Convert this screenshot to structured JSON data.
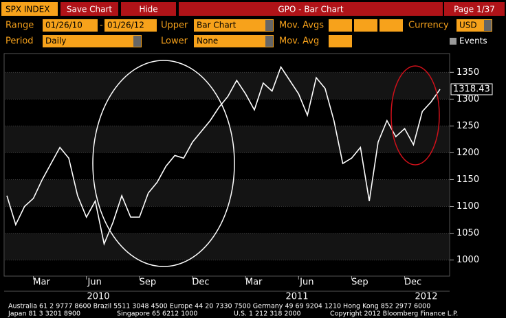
{
  "toolbar": {
    "ticker": "SPX INDEX",
    "buttons": [
      "Save Chart",
      "Hide"
    ],
    "title": "GPO - Bar Chart",
    "page": "Page 1/37",
    "range_label": "Range",
    "range_from": "01/26/10",
    "range_sep": "-",
    "range_to": "01/26/12",
    "upper_label": "Upper",
    "upper_value": "Bar Chart",
    "mov_avgs_label": "Mov. Avgs",
    "currency_label": "Currency",
    "currency_value": "USD",
    "period_label": "Period",
    "period_value": "Daily",
    "lower_label": "Lower",
    "lower_value": "None",
    "mov_avg_label": "Mov. Avg",
    "events_label": "Events"
  },
  "chart_data": {
    "type": "line",
    "categories": [
      null,
      null,
      null,
      "Mar",
      null,
      null,
      null,
      null,
      null,
      "Jun",
      null,
      null,
      null,
      null,
      null,
      "Sep",
      null,
      null,
      null,
      null,
      null,
      "Dec",
      null,
      null,
      null,
      null,
      null,
      "Mar",
      null,
      null,
      null,
      null,
      null,
      "Jun",
      null,
      null,
      null,
      null,
      null,
      "Sep",
      null,
      null,
      null,
      null,
      null,
      "Dec",
      null,
      null,
      null,
      null
    ],
    "years": [
      "2010",
      "2011",
      "2012"
    ],
    "series": [
      {
        "name": "SPX INDEX",
        "color": "#ffffff",
        "values": [
          1120,
          1066,
          1100,
          1115,
          1150,
          1180,
          1210,
          1190,
          1120,
          1080,
          1110,
          1030,
          1070,
          1120,
          1080,
          1080,
          1125,
          1145,
          1175,
          1195,
          1190,
          1220,
          1240,
          1260,
          1285,
          1305,
          1335,
          1310,
          1280,
          1330,
          1315,
          1360,
          1335,
          1310,
          1270,
          1340,
          1320,
          1260,
          1180,
          1190,
          1210,
          1110,
          1220,
          1260,
          1230,
          1245,
          1215,
          1277,
          1295,
          1318.43
        ]
      }
    ],
    "ylim": [
      970,
      1385
    ],
    "yticks": [
      1000,
      1050,
      1100,
      1150,
      1200,
      1250,
      1300,
      1350
    ],
    "grid": true
  },
  "footer": [
    "Australia 61 2 9777 8600 Brazil 5511 3048 4500 Europe 44 20 7330 7500 Germany 49 69 9204 1210 Hong Kong 852 2977 6000",
    "Japan 81 3 3201 8900",
    "Singapore 65 6212 1000",
    "U.S. 1 212 318 2000",
    "Copyright 2012 Bloomberg Finance L.P."
  ]
}
